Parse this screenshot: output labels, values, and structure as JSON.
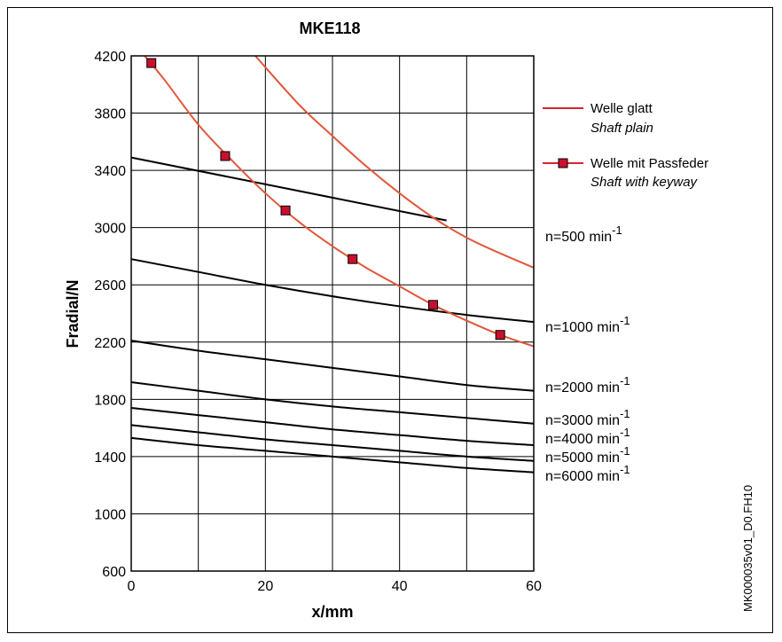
{
  "chart_data": {
    "type": "line",
    "title": "MKE118",
    "xlabel": "x/mm",
    "ylabel": "Fradial/N",
    "xlim": [
      0,
      60
    ],
    "ylim": [
      600,
      4200
    ],
    "x_ticks": [
      0,
      20,
      40,
      60
    ],
    "y_ticks": [
      600,
      1000,
      1400,
      1800,
      2200,
      2600,
      3000,
      3400,
      3800,
      4200
    ],
    "grid": true,
    "legend_position": "right",
    "legend": [
      {
        "label": "Welle glatt",
        "label_en": "Shaft plain",
        "color": "#d9242b",
        "marker": "none"
      },
      {
        "label": "Welle mit Passfeder",
        "label_en": "Shaft with keyway",
        "color": "#d9242b",
        "marker": "square"
      }
    ],
    "shaft_series": [
      {
        "key": "plain",
        "color": "#e0573a",
        "x": [
          18.5,
          25,
          30,
          35,
          40,
          45,
          50,
          55,
          60
        ],
        "y": [
          4200,
          3860,
          3640,
          3430,
          3240,
          3070,
          2930,
          2820,
          2720
        ]
      },
      {
        "key": "keyway",
        "color": "#e0573a",
        "x": [
          2,
          5,
          10,
          15,
          20,
          25,
          30,
          35,
          40,
          45,
          50,
          55,
          60
        ],
        "y": [
          4200,
          4030,
          3720,
          3470,
          3240,
          3040,
          2870,
          2720,
          2590,
          2460,
          2350,
          2250,
          2170
        ]
      }
    ],
    "keyway_markers": {
      "x": [
        3,
        14,
        23,
        33,
        45,
        55
      ],
      "y": [
        4150,
        3500,
        3120,
        2780,
        2460,
        2250
      ]
    },
    "speed_series": [
      {
        "label": "n=500 min",
        "sup": "-1",
        "x": [
          0,
          47
        ],
        "y": [
          3490,
          3050
        ]
      },
      {
        "label": "n=1000 min",
        "sup": "-1",
        "x": [
          0,
          10,
          20,
          30,
          40,
          50,
          60
        ],
        "y": [
          2780,
          2690,
          2600,
          2520,
          2450,
          2390,
          2340
        ]
      },
      {
        "label": "n=2000 min",
        "sup": "-1",
        "x": [
          0,
          10,
          20,
          30,
          40,
          50,
          60
        ],
        "y": [
          2210,
          2140,
          2080,
          2020,
          1960,
          1900,
          1860
        ]
      },
      {
        "label": "n=3000 min",
        "sup": "-1",
        "x": [
          0,
          10,
          20,
          30,
          40,
          50,
          60
        ],
        "y": [
          1920,
          1860,
          1800,
          1750,
          1710,
          1670,
          1630
        ]
      },
      {
        "label": "n=4000 min",
        "sup": "-1",
        "x": [
          0,
          10,
          20,
          30,
          40,
          50,
          60
        ],
        "y": [
          1740,
          1690,
          1640,
          1590,
          1550,
          1510,
          1480
        ]
      },
      {
        "label": "n=5000 min",
        "sup": "-1",
        "x": [
          0,
          10,
          20,
          30,
          40,
          50,
          60
        ],
        "y": [
          1620,
          1570,
          1520,
          1480,
          1440,
          1400,
          1370
        ]
      },
      {
        "label": "n=6000 min",
        "sup": "-1",
        "x": [
          0,
          10,
          20,
          30,
          40,
          50,
          60
        ],
        "y": [
          1530,
          1480,
          1440,
          1400,
          1360,
          1320,
          1290
        ]
      }
    ],
    "document_id": "MK000035v01_D0.FH10"
  }
}
